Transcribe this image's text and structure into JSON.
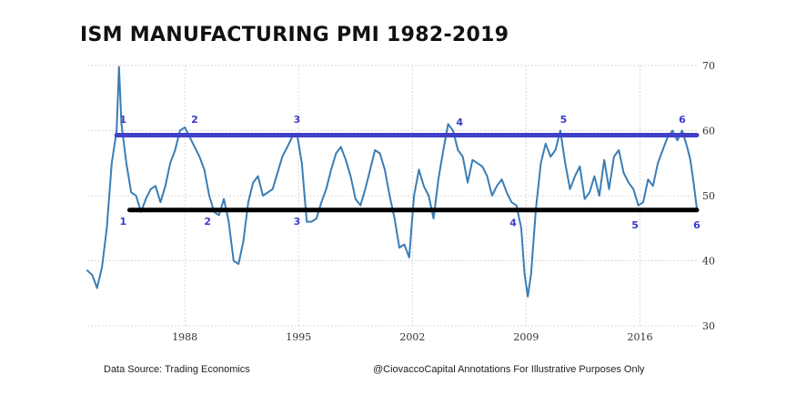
{
  "chart_data": {
    "type": "line",
    "title": "ISM MANUFACTURING PMI 1982-2019",
    "xlabel": "",
    "ylabel": "",
    "xlim": [
      1982,
      2019.5
    ],
    "ylim": [
      30,
      70
    ],
    "x_ticks": [
      "1988",
      "1995",
      "2002",
      "2009",
      "2016"
    ],
    "x_tick_values": [
      1988,
      1995,
      2002,
      2009,
      2016
    ],
    "y_ticks": [
      "30",
      "40",
      "50",
      "60",
      "70"
    ],
    "y_tick_values": [
      30,
      40,
      50,
      60,
      70
    ],
    "grid": true,
    "series": [
      {
        "name": "ISM Manufacturing PMI",
        "color": "#3a7db5",
        "x": [
          1982.0,
          1982.3,
          1982.6,
          1982.9,
          1983.2,
          1983.5,
          1983.8,
          1983.95,
          1984.1,
          1984.4,
          1984.7,
          1985.0,
          1985.3,
          1985.6,
          1985.9,
          1986.2,
          1986.5,
          1986.8,
          1987.1,
          1987.4,
          1987.7,
          1988.0,
          1988.3,
          1988.6,
          1988.9,
          1989.2,
          1989.5,
          1989.8,
          1990.1,
          1990.4,
          1990.7,
          1991.0,
          1991.3,
          1991.6,
          1991.9,
          1992.2,
          1992.5,
          1992.8,
          1993.1,
          1993.4,
          1993.7,
          1994.0,
          1994.3,
          1994.6,
          1994.9,
          1995.2,
          1995.5,
          1995.8,
          1996.1,
          1996.4,
          1996.7,
          1997.0,
          1997.3,
          1997.6,
          1997.9,
          1998.2,
          1998.5,
          1998.8,
          1999.1,
          1999.4,
          1999.7,
          2000.0,
          2000.3,
          2000.6,
          2000.9,
          2001.2,
          2001.5,
          2001.8,
          2002.1,
          2002.4,
          2002.7,
          2003.0,
          2003.3,
          2003.6,
          2003.9,
          2004.2,
          2004.5,
          2004.8,
          2005.1,
          2005.4,
          2005.7,
          2006.0,
          2006.3,
          2006.6,
          2006.9,
          2007.2,
          2007.5,
          2007.8,
          2008.1,
          2008.4,
          2008.7,
          2008.9,
          2009.1,
          2009.3,
          2009.6,
          2009.9,
          2010.2,
          2010.5,
          2010.8,
          2011.1,
          2011.4,
          2011.7,
          2012.0,
          2012.3,
          2012.6,
          2012.9,
          2013.2,
          2013.5,
          2013.8,
          2014.1,
          2014.4,
          2014.7,
          2015.0,
          2015.3,
          2015.6,
          2015.9,
          2016.2,
          2016.5,
          2016.8,
          2017.1,
          2017.4,
          2017.7,
          2018.0,
          2018.3,
          2018.6,
          2018.9,
          2019.1,
          2019.3,
          2019.5
        ],
        "values": [
          38.5,
          37.8,
          35.8,
          39.0,
          45.0,
          55.0,
          60.0,
          69.8,
          61.0,
          55.0,
          50.5,
          50.0,
          47.5,
          49.5,
          51.0,
          51.5,
          49.0,
          51.5,
          55.0,
          57.0,
          60.0,
          60.5,
          59.0,
          57.5,
          56.0,
          54.0,
          50.0,
          47.5,
          47.0,
          49.5,
          46.0,
          40.0,
          39.5,
          43.0,
          49.0,
          52.0,
          53.0,
          50.0,
          50.5,
          51.0,
          53.5,
          56.0,
          57.5,
          59.0,
          59.5,
          55.0,
          46.0,
          46.0,
          46.5,
          49.0,
          51.0,
          54.0,
          56.5,
          57.5,
          55.5,
          53.0,
          49.5,
          48.5,
          51.0,
          54.0,
          57.0,
          56.5,
          54.0,
          50.0,
          46.5,
          42.0,
          42.5,
          40.5,
          50.0,
          54.0,
          51.5,
          50.0,
          46.5,
          52.5,
          57.0,
          61.0,
          60.0,
          57.0,
          56.0,
          52.0,
          55.5,
          55.0,
          54.5,
          53.0,
          50.0,
          51.5,
          52.5,
          50.5,
          49.0,
          48.5,
          45.0,
          38.0,
          34.5,
          38.0,
          48.0,
          55.0,
          58.0,
          56.0,
          57.0,
          60.0,
          55.0,
          51.0,
          53.0,
          54.5,
          49.5,
          50.5,
          53.0,
          50.0,
          55.5,
          51.0,
          56.0,
          57.0,
          53.5,
          52.0,
          51.0,
          48.5,
          49.0,
          52.5,
          51.5,
          55.0,
          57.0,
          59.0,
          60.0,
          58.5,
          60.0,
          57.5,
          55.5,
          52.0,
          48.0
        ]
      }
    ],
    "reference_lines": [
      {
        "name": "upper band",
        "value": 59.3,
        "color": "#4040c8"
      },
      {
        "name": "lower band",
        "value": 47.8,
        "color": "#000000"
      }
    ],
    "annotations": {
      "upper": [
        {
          "text": "1",
          "x": 1984.2,
          "y": 61.2
        },
        {
          "text": "2",
          "x": 1988.6,
          "y": 61.2
        },
        {
          "text": "3",
          "x": 1994.9,
          "y": 61.2
        },
        {
          "text": "4",
          "x": 2004.9,
          "y": 60.8
        },
        {
          "text": "5",
          "x": 2011.3,
          "y": 61.2
        },
        {
          "text": "6",
          "x": 2018.6,
          "y": 61.2
        }
      ],
      "lower": [
        {
          "text": "1",
          "x": 1984.2,
          "y": 45.5
        },
        {
          "text": "2",
          "x": 1989.4,
          "y": 45.5
        },
        {
          "text": "3",
          "x": 1994.9,
          "y": 45.5
        },
        {
          "text": "4",
          "x": 2008.2,
          "y": 45.3
        },
        {
          "text": "5",
          "x": 2015.7,
          "y": 45.0
        },
        {
          "text": "6",
          "x": 2019.5,
          "y": 45.0
        }
      ]
    }
  },
  "footer": {
    "source": "Data Source: Trading Economics",
    "credit": "@CiovaccoCapital Annotations For Illustrative Purposes Only"
  }
}
